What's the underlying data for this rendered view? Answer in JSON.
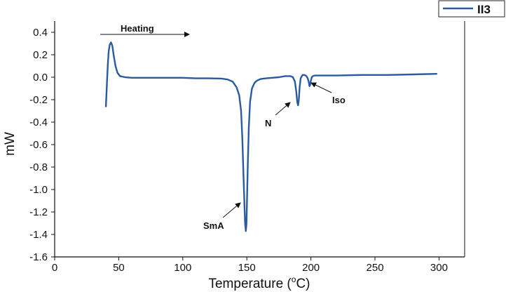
{
  "chart_data": {
    "type": "line",
    "title": "",
    "xlabel": "Temperature (",
    "xlabel_sup": "o",
    "xlabel_tail": "C)",
    "ylabel": "mW",
    "xlim": [
      0,
      320
    ],
    "ylim": [
      -1.6,
      0.5
    ],
    "x_ticks": [
      "0",
      "50",
      "100",
      "150",
      "200",
      "250",
      "300"
    ],
    "y_ticks": [
      "0.4",
      "0.2",
      "0.0",
      "-0.2",
      "-0.4",
      "-0.6",
      "-0.8",
      "-1.0",
      "-1.2",
      "-1.4",
      "-1.6"
    ],
    "grid": false,
    "legend_position": "top-right",
    "series": [
      {
        "name": "II3",
        "color": "#2a5b9f",
        "x": [
          40,
          40.8,
          41.5,
          42.2,
          43,
          44,
          45,
          46,
          47.5,
          49,
          51,
          55,
          60,
          70,
          80,
          90,
          100,
          110,
          120,
          130,
          135,
          139,
          142,
          144,
          145.5,
          146.5,
          147.3,
          148,
          148.6,
          149.2,
          149.7,
          150.2,
          150.8,
          151.5,
          152.5,
          154,
          156,
          158,
          161,
          165,
          170,
          175,
          180,
          184,
          186,
          187.5,
          188.5,
          189.3,
          190,
          190.6,
          191.2,
          192,
          193.5,
          195,
          196.5,
          197.5,
          198.3,
          198.9,
          199.4,
          200,
          200.7,
          201.5,
          203,
          206,
          210,
          220,
          240,
          260,
          280,
          298
        ],
        "y": [
          -0.26,
          -0.05,
          0.12,
          0.23,
          0.29,
          0.31,
          0.28,
          0.2,
          0.1,
          0.04,
          0.01,
          0.0,
          -0.005,
          -0.005,
          -0.005,
          -0.005,
          -0.005,
          -0.01,
          -0.01,
          -0.012,
          -0.02,
          -0.04,
          -0.09,
          -0.16,
          -0.3,
          -0.55,
          -0.85,
          -1.1,
          -1.3,
          -1.37,
          -1.3,
          -1.05,
          -0.75,
          -0.45,
          -0.22,
          -0.1,
          -0.05,
          -0.03,
          -0.015,
          -0.01,
          -0.005,
          0.0,
          0.01,
          0.01,
          0.0,
          -0.04,
          -0.12,
          -0.22,
          -0.25,
          -0.2,
          -0.09,
          -0.01,
          0.02,
          0.02,
          0.01,
          -0.01,
          -0.04,
          -0.08,
          -0.07,
          -0.03,
          0.0,
          0.01,
          0.015,
          0.015,
          0.015,
          0.015,
          0.02,
          0.02,
          0.025,
          0.03
        ]
      }
    ],
    "annotations": [
      {
        "label": "Heating",
        "target": [
          105,
          0.33
        ]
      },
      {
        "label": "SmA",
        "target": [
          148.5,
          -1.17
        ]
      },
      {
        "label": "N",
        "target": [
          189,
          -0.25
        ]
      },
      {
        "label": "Iso",
        "target": [
          201,
          -0.08
        ]
      }
    ]
  }
}
